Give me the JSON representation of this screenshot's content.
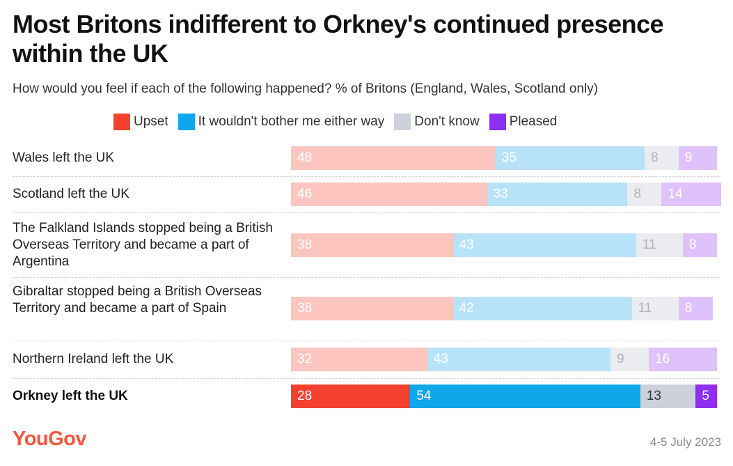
{
  "title": "Most Britons indifferent to Orkney's continued presence within the UK",
  "subtitle": "How would you feel if each of the following happened? % of Britons (England, Wales, Scotland only)",
  "footer": {
    "brand": "YouGov",
    "date": "4-5 July 2023"
  },
  "colors": {
    "upset": "#f4412d",
    "upset_light": "#fcc5c0",
    "neutral": "#10a6ea",
    "neutral_light": "#b8e2f8",
    "dontknow": "#cdd1da",
    "dontknow_light": "#ebecef",
    "pleased": "#8c2ff0",
    "pleased_light": "#dfc2fb"
  },
  "chart_data": {
    "type": "bar",
    "orientation": "horizontal",
    "stacked": true,
    "legend_position": "top",
    "grid": false,
    "xlim": [
      0,
      100
    ],
    "categories": [
      "Wales left the UK",
      "Scotland left the UK",
      "The Falkland Islands stopped being a British Overseas Territory and became a part of Argentina",
      "Gibraltar stopped being a British Overseas Territory and became a part of Spain",
      "Northern Ireland left the UK",
      "Orkney left the UK"
    ],
    "highlighted_category": "Orkney left the UK",
    "series": [
      {
        "name": "Upset",
        "color": "#f4412d",
        "values": [
          48,
          46,
          38,
          38,
          32,
          28
        ]
      },
      {
        "name": "It wouldn't bother me either way",
        "color": "#10a6ea",
        "values": [
          35,
          33,
          43,
          42,
          43,
          54
        ]
      },
      {
        "name": "Don't know",
        "color": "#cdd1da",
        "values": [
          8,
          8,
          11,
          11,
          9,
          13
        ]
      },
      {
        "name": "Pleased",
        "color": "#8c2ff0",
        "values": [
          9,
          14,
          8,
          8,
          16,
          5
        ]
      }
    ]
  }
}
